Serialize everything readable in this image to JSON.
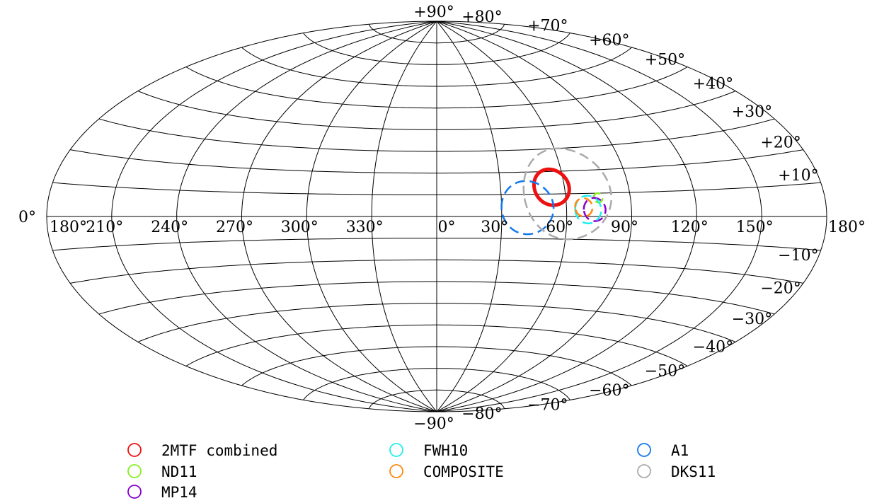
{
  "chart_data": {
    "type": "scatter",
    "projection": "aitoff",
    "coordinate_system": "galactic",
    "grid": true,
    "legend_position": "bottom",
    "longitude_ticks": [
      "180°",
      "150°",
      "120°",
      "90°",
      "60°",
      "30°",
      "0°",
      "330°",
      "300°",
      "270°",
      "240°",
      "210°",
      "180°"
    ],
    "latitude_ticks": [
      "+90°",
      "+80°",
      "+70°",
      "+60°",
      "+50°",
      "+40°",
      "+30°",
      "+20°",
      "+10°",
      "0°",
      "−10°",
      "−20°",
      "−30°",
      "−40°",
      "−50°",
      "−60°",
      "−70°",
      "−80°",
      "−90°"
    ],
    "series": [
      {
        "name": "2MTF combined",
        "color": "#ee1111",
        "l": 306,
        "b": 13,
        "radius_deg": 8,
        "line": "solid"
      },
      {
        "name": "ND11",
        "color": "#88ee22",
        "l": 285,
        "b": 8,
        "radius_deg": 2,
        "line": "dashed"
      },
      {
        "name": "MP14",
        "color": "#8800cc",
        "l": 287,
        "b": 3,
        "radius_deg": 5,
        "line": "dashed"
      },
      {
        "name": "FWH10",
        "color": "#22eeee",
        "l": 290,
        "b": 3,
        "radius_deg": 6,
        "line": "dashed"
      },
      {
        "name": "COMPOSITE",
        "color": "#ff8811",
        "l": 292,
        "b": 4,
        "radius_deg": 4,
        "line": "dashed"
      },
      {
        "name": "A1",
        "color": "#1177ee",
        "l": 318,
        "b": 4,
        "radius_deg": 12,
        "line": "dashed"
      },
      {
        "name": "DKS11",
        "color": "#aaaaaa",
        "l": 299,
        "b": 10,
        "radius_deg": 20,
        "line": "dashed"
      }
    ]
  }
}
